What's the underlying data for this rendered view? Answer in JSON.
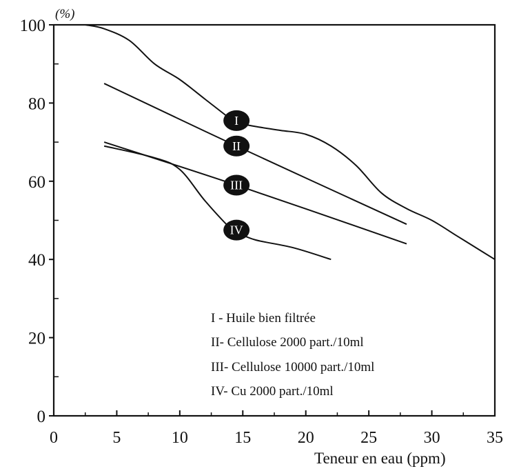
{
  "chart_data": {
    "type": "line",
    "title": "",
    "xlabel": "Teneur en eau (ppm)",
    "ylabel": "(%)",
    "xlim": [
      0,
      35
    ],
    "ylim": [
      0,
      100
    ],
    "x_ticks": [
      "0",
      "5",
      "10",
      "15",
      "20",
      "25",
      "30",
      "35"
    ],
    "y_ticks": [
      "0",
      "20",
      "40",
      "60",
      "80",
      "100"
    ],
    "grid": false,
    "legend_position": "bottom-center",
    "legend": [
      "I - Huile bien filtrée",
      "II- Cellulose 2000 part./10ml",
      "III- Cellulose 10000 part./10ml",
      "IV- Cu 2000 part./10ml"
    ],
    "series": [
      {
        "marker": "I",
        "points": [
          [
            2.5,
            100
          ],
          [
            4,
            99
          ],
          [
            6,
            96
          ],
          [
            8,
            90
          ],
          [
            10,
            86
          ],
          [
            12,
            81
          ],
          [
            14,
            76
          ],
          [
            14.5,
            75
          ],
          [
            16,
            74
          ],
          [
            18,
            73
          ],
          [
            20,
            72
          ],
          [
            22,
            69
          ],
          [
            24,
            64
          ],
          [
            26,
            57
          ],
          [
            28,
            53
          ],
          [
            30,
            50
          ],
          [
            32,
            46
          ],
          [
            34,
            42
          ],
          [
            35,
            40
          ]
        ],
        "marker_at": [
          14.5,
          75.5
        ]
      },
      {
        "marker": "II",
        "points": [
          [
            4,
            85
          ],
          [
            14.5,
            69
          ],
          [
            28,
            49
          ]
        ],
        "marker_at": [
          14.5,
          69
        ]
      },
      {
        "marker": "III",
        "points": [
          [
            4,
            70
          ],
          [
            14.5,
            59
          ],
          [
            28,
            44
          ]
        ],
        "marker_at": [
          14.5,
          59
        ]
      },
      {
        "marker": "IV",
        "points": [
          [
            4,
            69
          ],
          [
            8,
            66
          ],
          [
            10,
            63
          ],
          [
            12,
            55
          ],
          [
            14,
            48
          ],
          [
            14.5,
            47
          ],
          [
            16,
            45
          ],
          [
            19,
            43
          ],
          [
            22,
            40
          ]
        ],
        "marker_at": [
          14.5,
          47.5
        ]
      }
    ]
  }
}
